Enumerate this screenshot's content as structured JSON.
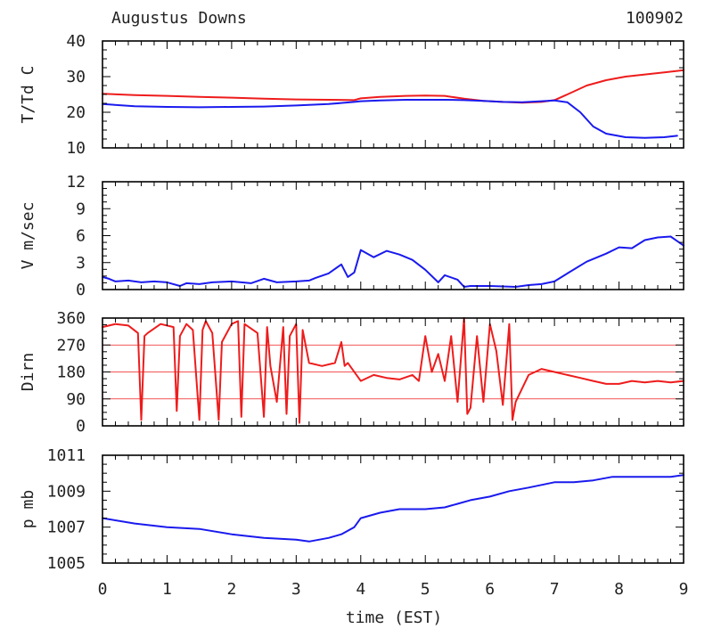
{
  "header": {
    "station": "Augustus Downs",
    "date_code": "100902"
  },
  "x_axis": {
    "label": "time (EST)",
    "range": [
      0,
      9
    ],
    "ticks": [
      "0",
      "1",
      "2",
      "3",
      "4",
      "5",
      "6",
      "7",
      "8",
      "9"
    ]
  },
  "colors": {
    "red": "#ee1c1c",
    "blue": "#1a1aee",
    "axis": "#000000"
  },
  "chart_data": [
    {
      "type": "line",
      "id": "temp",
      "ylabel": "T/Td C",
      "ylim": [
        10,
        40
      ],
      "yticks": [
        "40",
        "30",
        "20",
        "10"
      ],
      "series": [
        {
          "name": "T",
          "color": "red",
          "x": [
            0,
            0.5,
            1,
            1.5,
            2,
            2.5,
            3,
            3.5,
            3.9,
            4.0,
            4.3,
            4.7,
            5.0,
            5.3,
            5.6,
            5.9,
            6.2,
            6.5,
            6.8,
            7.0,
            7.2,
            7.5,
            7.8,
            8.1,
            8.4,
            8.7,
            9.0
          ],
          "y": [
            25.2,
            24.8,
            24.6,
            24.3,
            24.1,
            23.8,
            23.6,
            23.5,
            23.4,
            23.9,
            24.3,
            24.6,
            24.7,
            24.6,
            23.8,
            23.2,
            22.9,
            22.7,
            22.9,
            23.4,
            25.0,
            27.5,
            29.0,
            30.0,
            30.6,
            31.2,
            31.8
          ]
        },
        {
          "name": "Td",
          "color": "blue",
          "x": [
            0,
            0.5,
            1,
            1.5,
            2,
            2.5,
            3,
            3.5,
            3.9,
            4.0,
            4.3,
            4.7,
            5.0,
            5.3,
            5.6,
            5.9,
            6.2,
            6.5,
            6.8,
            7.0,
            7.2,
            7.4,
            7.6,
            7.8,
            8.1,
            8.4,
            8.7,
            8.9
          ],
          "y": [
            22.3,
            21.7,
            21.5,
            21.4,
            21.5,
            21.6,
            21.9,
            22.3,
            22.9,
            23.1,
            23.3,
            23.5,
            23.5,
            23.5,
            23.4,
            23.2,
            22.9,
            22.8,
            23.1,
            23.3,
            22.8,
            20.0,
            16.0,
            14.0,
            13.0,
            12.8,
            13.0,
            13.4
          ]
        }
      ]
    },
    {
      "type": "line",
      "id": "wind",
      "ylabel": "V m/sec",
      "ylim": [
        0,
        12
      ],
      "yticks": [
        "12",
        "9",
        "6",
        "3",
        "0"
      ],
      "series": [
        {
          "name": "V",
          "color": "blue",
          "x": [
            0,
            0.1,
            0.2,
            0.4,
            0.6,
            0.8,
            1.0,
            1.2,
            1.3,
            1.5,
            1.7,
            2.0,
            2.3,
            2.5,
            2.7,
            3.0,
            3.2,
            3.3,
            3.5,
            3.7,
            3.8,
            3.9,
            4.0,
            4.2,
            4.4,
            4.6,
            4.8,
            5.0,
            5.2,
            5.3,
            5.5,
            5.6,
            5.7,
            6.0,
            6.4,
            6.6,
            6.8,
            7.0,
            7.2,
            7.5,
            7.8,
            8.0,
            8.2,
            8.4,
            8.6,
            8.8,
            9.0
          ],
          "y": [
            1.4,
            1.2,
            0.9,
            1.0,
            0.8,
            0.9,
            0.8,
            0.4,
            0.7,
            0.6,
            0.8,
            0.9,
            0.7,
            1.2,
            0.8,
            0.9,
            1.0,
            1.3,
            1.8,
            2.8,
            1.4,
            1.9,
            4.4,
            3.6,
            4.3,
            3.9,
            3.3,
            2.2,
            0.8,
            1.6,
            1.1,
            0.3,
            0.4,
            0.4,
            0.3,
            0.5,
            0.6,
            0.9,
            1.8,
            3.1,
            4.0,
            4.7,
            4.6,
            5.5,
            5.8,
            5.9,
            4.9
          ]
        }
      ]
    },
    {
      "type": "line",
      "id": "direction",
      "ylabel": "Dirn",
      "ylim": [
        0,
        360
      ],
      "yticks": [
        "360",
        "270",
        "180",
        "90",
        "0"
      ],
      "reference_lines": [
        90,
        180,
        270
      ],
      "series": [
        {
          "name": "Dirn",
          "color": "red",
          "x": [
            0,
            0.2,
            0.4,
            0.55,
            0.6,
            0.65,
            0.7,
            0.9,
            1.1,
            1.15,
            1.2,
            1.3,
            1.4,
            1.5,
            1.55,
            1.6,
            1.7,
            1.8,
            1.85,
            2.0,
            2.1,
            2.15,
            2.2,
            2.4,
            2.5,
            2.55,
            2.6,
            2.7,
            2.8,
            2.85,
            2.9,
            3.0,
            3.05,
            3.1,
            3.2,
            3.4,
            3.6,
            3.7,
            3.75,
            3.8,
            4.0,
            4.2,
            4.4,
            4.6,
            4.8,
            4.9,
            5.0,
            5.1,
            5.2,
            5.3,
            5.4,
            5.5,
            5.6,
            5.65,
            5.7,
            5.8,
            5.9,
            6.0,
            6.1,
            6.2,
            6.3,
            6.35,
            6.4,
            6.6,
            6.8,
            7.0,
            7.2,
            7.4,
            7.6,
            7.8,
            8.0,
            8.2,
            8.4,
            8.6,
            8.8,
            9.0
          ],
          "y": [
            330,
            340,
            335,
            310,
            20,
            300,
            310,
            340,
            330,
            50,
            300,
            340,
            320,
            20,
            320,
            350,
            310,
            20,
            280,
            340,
            350,
            30,
            340,
            310,
            30,
            330,
            200,
            80,
            330,
            40,
            300,
            340,
            10,
            320,
            210,
            200,
            210,
            280,
            200,
            210,
            150,
            170,
            160,
            155,
            170,
            150,
            300,
            180,
            240,
            150,
            300,
            80,
            360,
            40,
            60,
            300,
            80,
            340,
            250,
            70,
            340,
            20,
            80,
            170,
            190,
            180,
            170,
            160,
            150,
            140,
            140,
            150,
            145,
            150,
            145,
            150
          ]
        }
      ]
    },
    {
      "type": "line",
      "id": "pressure",
      "ylabel": "p mb",
      "ylim": [
        1005,
        1011
      ],
      "yticks": [
        "1011",
        "1009",
        "1007",
        "1005"
      ],
      "series": [
        {
          "name": "p",
          "color": "blue",
          "x": [
            0,
            0.5,
            1,
            1.5,
            2,
            2.5,
            3.0,
            3.2,
            3.5,
            3.7,
            3.9,
            4.0,
            4.3,
            4.6,
            5.0,
            5.3,
            5.5,
            5.7,
            6.0,
            6.3,
            6.6,
            7.0,
            7.3,
            7.6,
            7.9,
            8.2,
            8.5,
            8.8,
            9.0
          ],
          "y": [
            1007.5,
            1007.2,
            1007.0,
            1006.9,
            1006.6,
            1006.4,
            1006.3,
            1006.2,
            1006.4,
            1006.6,
            1007.0,
            1007.5,
            1007.8,
            1008.0,
            1008.0,
            1008.1,
            1008.3,
            1008.5,
            1008.7,
            1009.0,
            1009.2,
            1009.5,
            1009.5,
            1009.6,
            1009.8,
            1009.8,
            1009.8,
            1009.8,
            1009.9
          ]
        }
      ]
    }
  ]
}
